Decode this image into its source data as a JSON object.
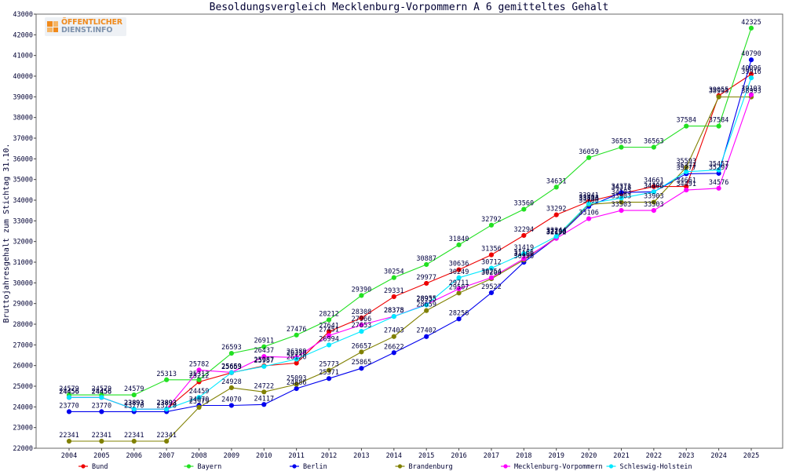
{
  "logo": {
    "line1": "ÖFFENTLICHER",
    "line2": "DIENST.INFO"
  },
  "chart_data": {
    "type": "line",
    "title": "Besoldungsvergleich Mecklenburg-Vorpommern A 6 gemitteltes Gehalt",
    "ylabel": "Bruttojahresgehalt zum Stichtag 31.10.",
    "categories": [
      "2004",
      "2005",
      "2006",
      "2007",
      "2008",
      "2009",
      "2010",
      "2011",
      "2012",
      "2013",
      "2014",
      "2015",
      "2016",
      "2017",
      "2018",
      "2019",
      "2020",
      "2021",
      "2022",
      "2023",
      "2024",
      "2025"
    ],
    "ylim": [
      22000,
      43000
    ],
    "yticks": [
      22000,
      23000,
      24000,
      25000,
      26000,
      27000,
      28000,
      29000,
      30000,
      31000,
      32000,
      33000,
      34000,
      35000,
      36000,
      37000,
      38000,
      39000,
      40000,
      41000,
      42000,
      43000
    ],
    "grid": false,
    "legend": "bottom",
    "series": [
      {
        "name": "Bund",
        "color": "#ee0000",
        "values": [
          24456,
          24456,
          23893,
          23893,
          25212,
          25653,
          25987,
          26120,
          27641,
          28308,
          29331,
          29977,
          30636,
          31356,
          32294,
          33292,
          33941,
          34318,
          34661,
          34661,
          39055,
          40096
        ]
      },
      {
        "name": "Bayern",
        "color": "#22e022",
        "values": [
          24579,
          24579,
          24579,
          25313,
          25313,
          26593,
          26911,
          27476,
          28212,
          29390,
          30254,
          30887,
          31840,
          32792,
          33560,
          34631,
          36059,
          36563,
          36563,
          37584,
          37584,
          42325
        ]
      },
      {
        "name": "Berlin",
        "color": "#0000ee",
        "values": [
          23770,
          23770,
          23770,
          23770,
          24070,
          24070,
          24117,
          24886,
          25371,
          25865,
          26622,
          27402,
          28256,
          29522,
          30996,
          32178,
          33700,
          34371,
          34405,
          35277,
          35297,
          40790
        ]
      },
      {
        "name": "Brandenburg",
        "color": "#808000",
        "values": [
          22341,
          22341,
          22341,
          22341,
          23979,
          24928,
          24722,
          25093,
          25773,
          26657,
          27403,
          28659,
          29507,
          30200,
          31106,
          32200,
          33796,
          33903,
          33903,
          35593,
          38995,
          38993
        ]
      },
      {
        "name": "Mecklenburg-Vorpommern",
        "color": "#ff00ff",
        "values": [
          24456,
          24456,
          23893,
          23893,
          25782,
          25669,
          26437,
          26389,
          27451,
          27966,
          28378,
          28955,
          29711,
          30254,
          31166,
          32152,
          33106,
          33503,
          33503,
          34491,
          34576,
          39103
        ]
      },
      {
        "name": "Schleswig-Holstein",
        "color": "#00e8ff",
        "values": [
          24456,
          24456,
          23893,
          23893,
          24459,
          25659,
          25957,
          26310,
          26994,
          27653,
          28375,
          28935,
          30249,
          30712,
          31419,
          32244,
          33833,
          34103,
          34396,
          35377,
          35457,
          39916
        ]
      }
    ]
  }
}
